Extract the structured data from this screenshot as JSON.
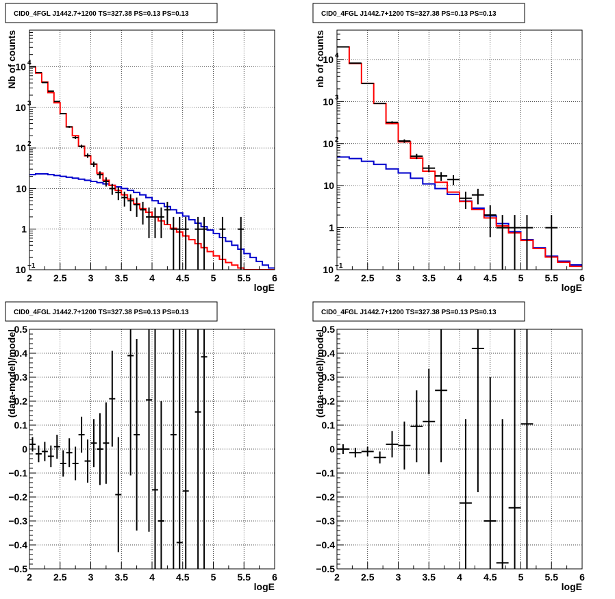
{
  "colors": {
    "data": "#000000",
    "model_total": "#ff0000",
    "model_component": "#0000cc",
    "background": "#ffffff"
  },
  "chart_data": [
    {
      "type": "line",
      "title": "CID0_4FGL J1442.7+1200 TS=327.38 PS=0.13 PS=0.13",
      "xlabel": "logE",
      "ylabel": "Nb of counts",
      "xlim": [
        2,
        6
      ],
      "ylim": [
        0.1,
        80000
      ],
      "yscale": "log",
      "grid": true,
      "x_ticks": [
        "2",
        "2.5",
        "3",
        "3.5",
        "4",
        "4.5",
        "5",
        "5.5",
        "6"
      ],
      "y_ticks": [
        {
          "v": 0.1,
          "t": "10"
        },
        {
          "v": 1,
          "t": "1"
        },
        {
          "v": 10,
          "t": "10"
        },
        {
          "v": 100,
          "t": "10"
        },
        {
          "v": 1000,
          "t": "10"
        },
        {
          "v": 10000,
          "t": "10"
        }
      ],
      "total_model": {
        "edges_start": 2,
        "bin_width": 0.1,
        "values": [
          10000,
          7000,
          4200,
          2300,
          1300,
          700,
          330,
          200,
          110,
          64,
          40,
          24,
          16,
          12,
          9,
          7,
          5.5,
          4.2,
          3.2,
          2.6,
          2.0,
          1.6,
          1.3,
          1.05,
          0.85,
          0.68,
          0.55,
          0.44,
          0.35,
          0.28,
          0.22,
          0.18,
          0.15,
          0.13,
          0.11,
          0.1,
          0.1,
          0.1,
          0.1,
          0.1
        ]
      },
      "component_model": {
        "edges_start": 2,
        "bin_width": 0.1,
        "values": [
          22,
          23,
          23,
          22,
          21,
          20,
          19,
          18,
          17,
          16,
          15,
          14,
          13,
          12,
          11,
          10,
          9,
          8,
          7,
          6,
          5,
          4.3,
          3.6,
          3.0,
          2.5,
          2.1,
          1.7,
          1.4,
          1.15,
          0.95,
          0.78,
          0.62,
          0.5,
          0.4,
          0.32,
          0.25,
          0.2,
          0.16,
          0.13,
          0.11
        ]
      },
      "points": {
        "x": [
          2.05,
          2.15,
          2.25,
          2.35,
          2.45,
          2.55,
          2.65,
          2.75,
          2.85,
          2.95,
          3.05,
          3.15,
          3.25,
          3.35,
          3.45,
          3.55,
          3.65,
          3.75,
          3.85,
          3.95,
          4.05,
          4.15,
          4.25,
          4.35,
          4.45,
          4.55,
          4.75,
          4.85,
          5.15,
          5.45
        ],
        "y": [
          10000,
          7200,
          4100,
          2500,
          1400,
          700,
          330,
          180,
          110,
          65,
          40,
          22,
          15,
          10,
          8,
          6,
          5,
          4,
          3,
          2,
          2,
          2,
          3,
          1,
          1,
          1,
          1,
          1,
          1,
          1
        ],
        "err_lo": [
          100,
          85,
          64,
          50,
          37,
          26,
          18,
          13,
          10,
          8,
          6,
          4.5,
          3.8,
          3,
          2.8,
          2.4,
          2.2,
          2,
          1.7,
          1.4,
          1.4,
          1.4,
          1.7,
          1,
          1,
          1,
          1,
          1,
          1,
          1
        ],
        "err_hi": [
          100,
          85,
          64,
          50,
          37,
          26,
          18,
          13,
          10,
          8,
          6,
          4.5,
          3.8,
          3,
          2.8,
          2.4,
          2.2,
          2,
          1.7,
          1.4,
          1.4,
          1.4,
          1.7,
          1,
          1,
          1,
          1,
          1,
          1,
          1
        ]
      }
    },
    {
      "type": "line",
      "title": "CID0_4FGL J1442.7+1200 TS=327.38 PS=0.13 PS=0.13",
      "xlabel": "logE",
      "ylabel": "nb of counts",
      "xlim": [
        2,
        6
      ],
      "ylim": [
        0.1,
        50000
      ],
      "yscale": "log",
      "grid": true,
      "x_ticks": [
        "2",
        "2.5",
        "3",
        "3.5",
        "4",
        "4.5",
        "5",
        "5.5",
        "6"
      ],
      "y_ticks": [
        {
          "v": 0.1,
          "t": "10"
        },
        {
          "v": 1,
          "t": "1"
        },
        {
          "v": 10,
          "t": "10"
        },
        {
          "v": 100,
          "t": "10"
        },
        {
          "v": 1000,
          "t": "10"
        },
        {
          "v": 10000,
          "t": "10"
        }
      ],
      "total_model": {
        "edges_start": 2,
        "bin_width": 0.2,
        "values": [
          20000,
          8000,
          2700,
          900,
          300,
          110,
          45,
          22,
          12,
          7,
          4.2,
          2.7,
          1.7,
          1.1,
          0.75,
          0.5,
          0.32,
          0.2,
          0.15,
          0.12
        ]
      },
      "component_model": {
        "edges_start": 2,
        "bin_width": 0.2,
        "values": [
          48,
          44,
          38,
          32,
          25,
          20,
          15,
          11,
          8.5,
          6.2,
          4.3,
          2.9,
          1.9,
          1.25,
          0.8,
          0.52,
          0.33,
          0.21,
          0.16,
          0.13
        ]
      },
      "points": {
        "x": [
          2.1,
          2.3,
          2.5,
          2.7,
          2.9,
          3.1,
          3.3,
          3.5,
          3.7,
          3.9,
          4.1,
          4.3,
          4.5,
          4.7,
          4.9,
          5.1,
          5.5
        ],
        "y": [
          20000,
          8200,
          2700,
          900,
          320,
          115,
          50,
          26,
          17,
          14,
          5,
          6,
          2,
          1,
          1,
          1,
          1
        ],
        "err_lo": [
          140,
          90,
          52,
          30,
          18,
          11,
          7,
          5,
          4,
          3.7,
          2.2,
          2.4,
          1.4,
          1,
          1,
          1,
          1
        ],
        "err_hi": [
          140,
          90,
          52,
          30,
          18,
          11,
          7,
          5,
          4,
          3.7,
          2.2,
          2.4,
          1.4,
          1,
          1,
          1,
          1
        ]
      }
    },
    {
      "type": "scatter",
      "title": "CID0_4FGL J1442.7+1200 TS=327.38 PS=0.13 PS=0.13",
      "xlabel": "logE",
      "ylabel": "(data-model)/model",
      "xlim": [
        2,
        6
      ],
      "ylim": [
        -0.5,
        0.5
      ],
      "grid": true,
      "x_ticks": [
        "2",
        "2.5",
        "3",
        "3.5",
        "4",
        "4.5",
        "5",
        "5.5",
        "6"
      ],
      "y_ticks": [
        "−0.5",
        "−0.4",
        "−0.3",
        "−0.2",
        "−0.1",
        "0",
        "0.1",
        "0.2",
        "0.3",
        "0.4",
        "0.5"
      ],
      "points": {
        "x": [
          2.05,
          2.15,
          2.25,
          2.35,
          2.45,
          2.55,
          2.65,
          2.75,
          2.85,
          2.95,
          3.05,
          3.15,
          3.25,
          3.35,
          3.45,
          3.65,
          3.75,
          3.95,
          4.05,
          4.15,
          4.35,
          4.45,
          4.55,
          4.75,
          4.85
        ],
        "y": [
          0.02,
          -0.02,
          -0.01,
          -0.03,
          0.01,
          -0.06,
          -0.015,
          -0.06,
          0.06,
          -0.05,
          0.025,
          0.0,
          0.025,
          0.21,
          -0.19,
          0.39,
          0.06,
          0.205,
          -0.17,
          -0.3,
          0.06,
          -0.39,
          -0.175,
          0.155,
          0.385
        ],
        "err": [
          0.03,
          0.035,
          0.04,
          0.045,
          0.05,
          0.055,
          0.06,
          0.07,
          0.075,
          0.09,
          0.1,
          0.15,
          0.17,
          0.2,
          0.24,
          0.5,
          0.4,
          0.55,
          0.8,
          0.5,
          0.7,
          0.9,
          0.9,
          1.0,
          1.0
        ]
      }
    },
    {
      "type": "scatter",
      "title": "CID0_4FGL J1442.7+1200 TS=327.38 PS=0.13 PS=0.13",
      "xlabel": "logE",
      "ylabel": "(data-model)/model",
      "xlim": [
        2,
        6
      ],
      "ylim": [
        -0.5,
        0.5
      ],
      "grid": true,
      "x_ticks": [
        "2",
        "2.5",
        "3",
        "3.5",
        "4",
        "4.5",
        "5",
        "5.5",
        "6"
      ],
      "y_ticks": [
        "−0.5",
        "−0.4",
        "−0.3",
        "−0.2",
        "−0.1",
        "0",
        "0.1",
        "0.2",
        "0.3",
        "0.4",
        "0.5"
      ],
      "points": {
        "x": [
          2.1,
          2.3,
          2.5,
          2.7,
          2.9,
          3.1,
          3.3,
          3.5,
          3.7,
          4.1,
          4.3,
          4.5,
          4.7,
          4.9,
          5.1
        ],
        "y": [
          0.0,
          -0.015,
          -0.01,
          -0.035,
          0.02,
          0.015,
          0.095,
          0.115,
          0.245,
          -0.225,
          0.42,
          -0.3,
          -0.475,
          -0.245,
          0.105
        ],
        "err": [
          0.02,
          0.02,
          0.02,
          0.025,
          0.055,
          0.1,
          0.15,
          0.22,
          0.3,
          0.35,
          0.6,
          0.6,
          0.6,
          0.9,
          0.8
        ]
      }
    }
  ]
}
